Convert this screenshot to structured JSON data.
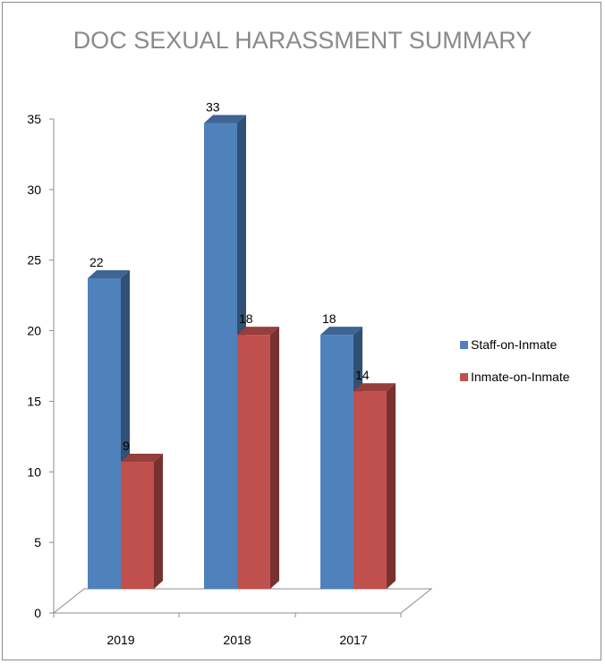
{
  "chart_data": {
    "type": "bar",
    "title": "DOC SEXUAL HARASSMENT SUMMARY",
    "categories": [
      "2019",
      "2018",
      "2017"
    ],
    "series": [
      {
        "name": "Staff-on-Inmate",
        "values": [
          22,
          33,
          18
        ],
        "color": "#4f81bd"
      },
      {
        "name": "Inmate-on-Inmate",
        "values": [
          9,
          18,
          14
        ],
        "color": "#c0504d"
      }
    ],
    "yticks": [
      "0",
      "5",
      "10",
      "15",
      "20",
      "25",
      "30",
      "35"
    ],
    "ylim": [
      0,
      35
    ],
    "legend_position": "right",
    "grid": false,
    "style": "3d-column"
  }
}
